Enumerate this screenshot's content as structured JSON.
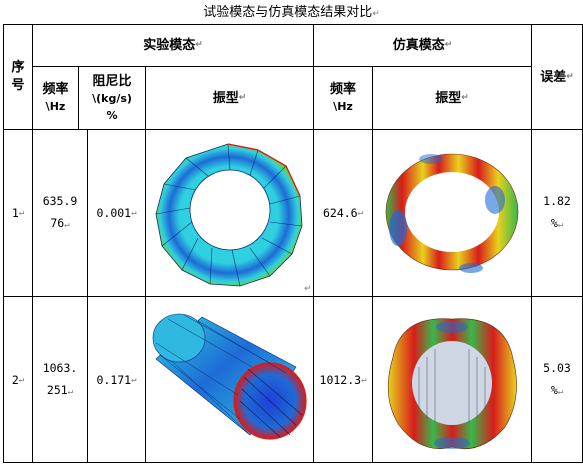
{
  "title": "试验模态与仿真模态结果对比",
  "para_mark": "↵",
  "header": {
    "index": "序号",
    "test_modal": "实验模态",
    "sim_modal": "仿真模态",
    "error": "误差",
    "freq": "频率",
    "freq_unit": "\\Hz",
    "damping": "阻尼比",
    "damping_unit": "\\(kg/s)",
    "damping_unit2": "%",
    "mode_shape": "振型"
  },
  "rows": [
    {
      "index": "1",
      "test_freq_a": "635.9",
      "test_freq_b": "76",
      "damping": "0.001",
      "sim_freq": "624.6",
      "error_a": "1.82",
      "error_b": "%"
    },
    {
      "index": "2",
      "test_freq_a": "1063.",
      "test_freq_b": "251",
      "damping": "0.171",
      "sim_freq": "1012.3",
      "error_a": "5.03",
      "error_b": "%"
    }
  ],
  "colors": {
    "ring_blue": "#1e6bd6",
    "ring_cyan": "#2fd0e0",
    "ring_green": "#5fd35a",
    "sim_red": "#d81c1c",
    "sim_yellow": "#e8d21c",
    "sim_green": "#38b84a"
  }
}
